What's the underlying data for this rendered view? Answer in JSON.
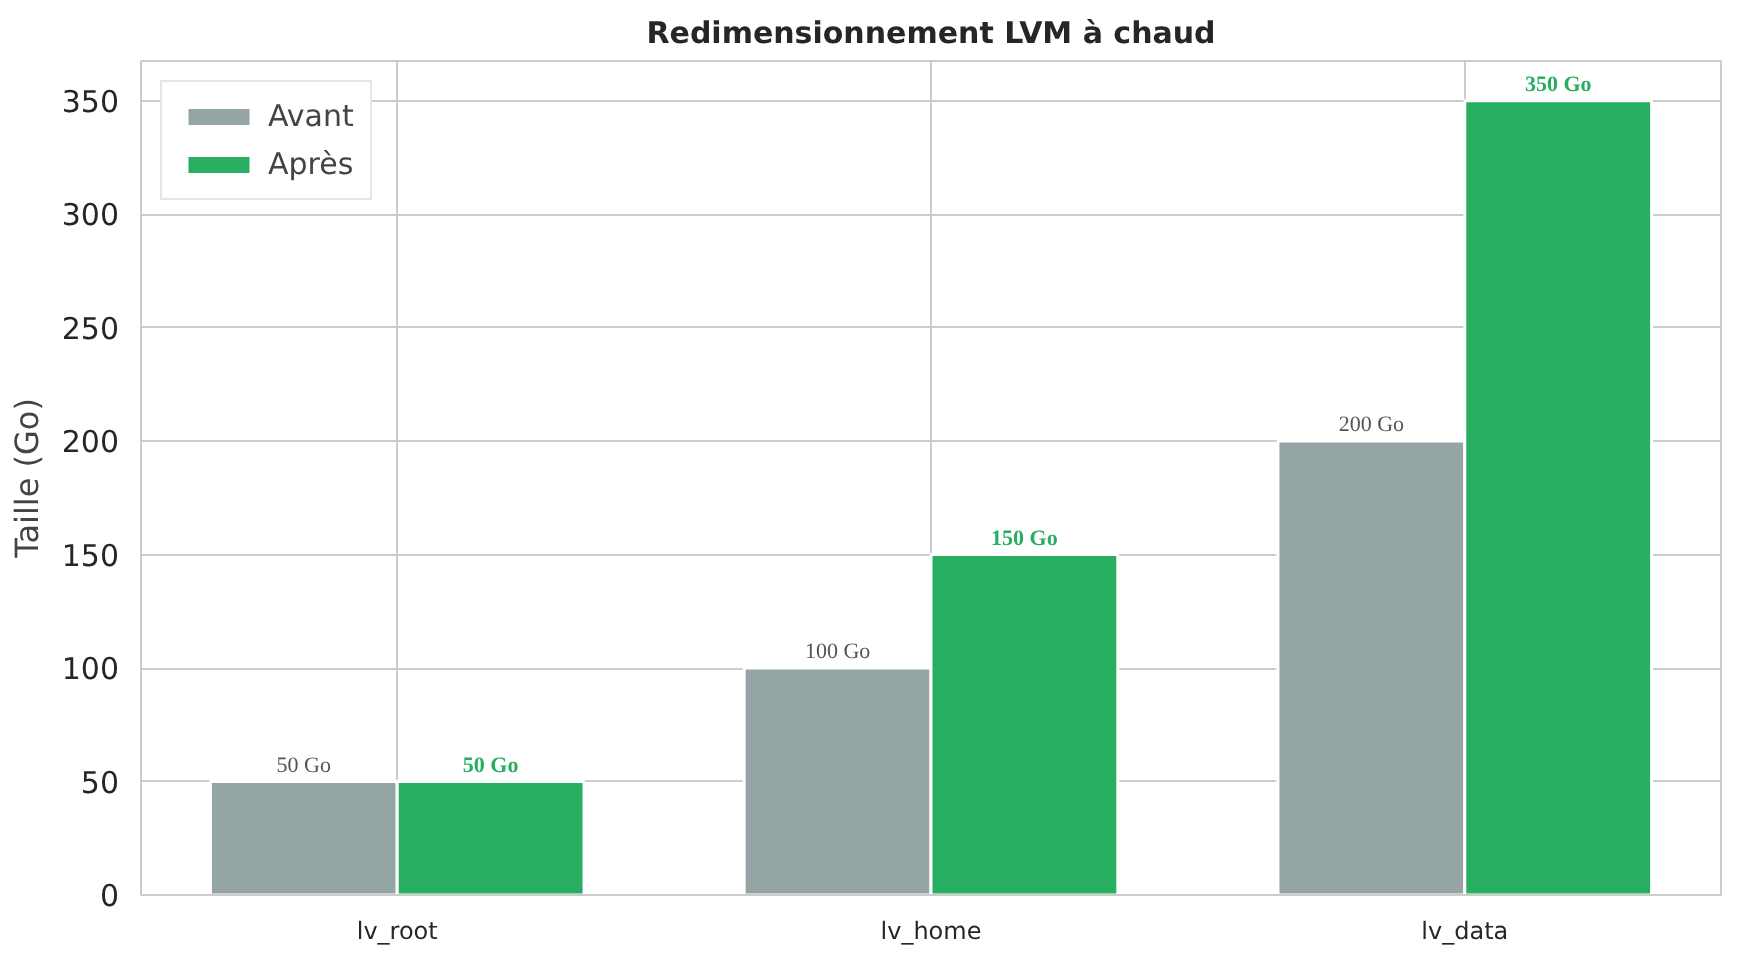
{
  "chart_data": {
    "type": "bar",
    "title": "Redimensionnement LVM à chaud",
    "ylabel": "Taille (Go)",
    "categories": [
      "lv_root",
      "lv_home",
      "lv_data"
    ],
    "series": [
      {
        "name": "Avant",
        "color": "#95a5a6",
        "values": [
          50,
          100,
          200
        ],
        "value_labels": [
          "50 Go",
          "100 Go",
          "200 Go"
        ]
      },
      {
        "name": "Après",
        "color": "#27ae60",
        "values": [
          50,
          150,
          350
        ],
        "value_labels": [
          "50 Go",
          "150 Go",
          "350 Go"
        ]
      }
    ],
    "ylim": [
      0,
      367.5
    ],
    "yticks": [
      0,
      50,
      100,
      150,
      200,
      250,
      300,
      350
    ],
    "grid": true,
    "legend": "top left"
  }
}
